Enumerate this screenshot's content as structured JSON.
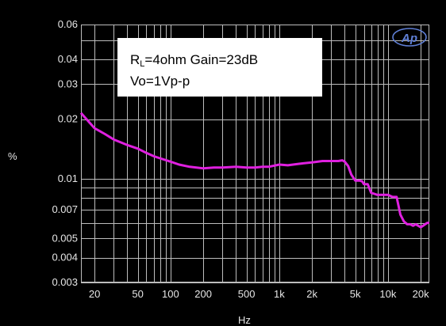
{
  "chart_data": {
    "type": "line",
    "xscale": "log",
    "yscale": "log",
    "xlim": [
      15,
      24000
    ],
    "ylim": [
      0.003,
      0.06
    ],
    "xlabel": "Hz",
    "ylabel": "%",
    "title": "",
    "grid": true,
    "legend": {
      "placement": "top-left",
      "line1_prefix": "R",
      "line1_subscript": "L",
      "line1_suffix": "=4ohm Gain=23dB",
      "line2": "Vo=1Vp-p"
    },
    "logo": "Ap",
    "x_ticks": [
      {
        "value": 20,
        "label": "20"
      },
      {
        "value": 50,
        "label": "50"
      },
      {
        "value": 100,
        "label": "100"
      },
      {
        "value": 200,
        "label": "200"
      },
      {
        "value": 500,
        "label": "500"
      },
      {
        "value": 1000,
        "label": "1k"
      },
      {
        "value": 2000,
        "label": "2k"
      },
      {
        "value": 5000,
        "label": "5k"
      },
      {
        "value": 10000,
        "label": "10k"
      },
      {
        "value": 20000,
        "label": "20k"
      }
    ],
    "y_ticks": [
      {
        "value": 0.06,
        "label": "0.06"
      },
      {
        "value": 0.04,
        "label": "0.04"
      },
      {
        "value": 0.03,
        "label": "0.03"
      },
      {
        "value": 0.02,
        "label": "0.02"
      },
      {
        "value": 0.01,
        "label": "0.01"
      },
      {
        "value": 0.007,
        "label": "0.007"
      },
      {
        "value": 0.005,
        "label": "0.005"
      },
      {
        "value": 0.004,
        "label": "0.004"
      },
      {
        "value": 0.003,
        "label": "0.003"
      }
    ],
    "series": [
      {
        "color": "#e020e0",
        "x": [
          15,
          20,
          25,
          30,
          40,
          50,
          60,
          70,
          80,
          100,
          120,
          150,
          200,
          250,
          300,
          400,
          500,
          600,
          700,
          800,
          1000,
          1200,
          1500,
          2000,
          2500,
          3000,
          3500,
          3800,
          4000,
          4300,
          4600,
          5000,
          5500,
          5800,
          6000,
          6500,
          7000,
          7500,
          8000,
          9000,
          10000,
          11000,
          12000,
          13000,
          14000,
          15000,
          16000,
          17000,
          18000,
          19000,
          20000,
          21000,
          22000,
          23000,
          24000
        ],
        "y": [
          0.0215,
          0.018,
          0.0168,
          0.0158,
          0.0148,
          0.0142,
          0.0135,
          0.013,
          0.0127,
          0.0122,
          0.0118,
          0.0115,
          0.0113,
          0.0114,
          0.0114,
          0.0115,
          0.0114,
          0.0114,
          0.0115,
          0.0115,
          0.0118,
          0.0117,
          0.0119,
          0.0121,
          0.0123,
          0.0123,
          0.0123,
          0.0124,
          0.0122,
          0.0116,
          0.0105,
          0.0098,
          0.0098,
          0.0097,
          0.0094,
          0.0094,
          0.0085,
          0.0084,
          0.0083,
          0.0083,
          0.0083,
          0.0081,
          0.0081,
          0.0066,
          0.0061,
          0.0059,
          0.0059,
          0.0058,
          0.0059,
          0.0058,
          0.0057,
          0.0058,
          0.0059,
          0.006,
          0.006
        ]
      }
    ]
  }
}
